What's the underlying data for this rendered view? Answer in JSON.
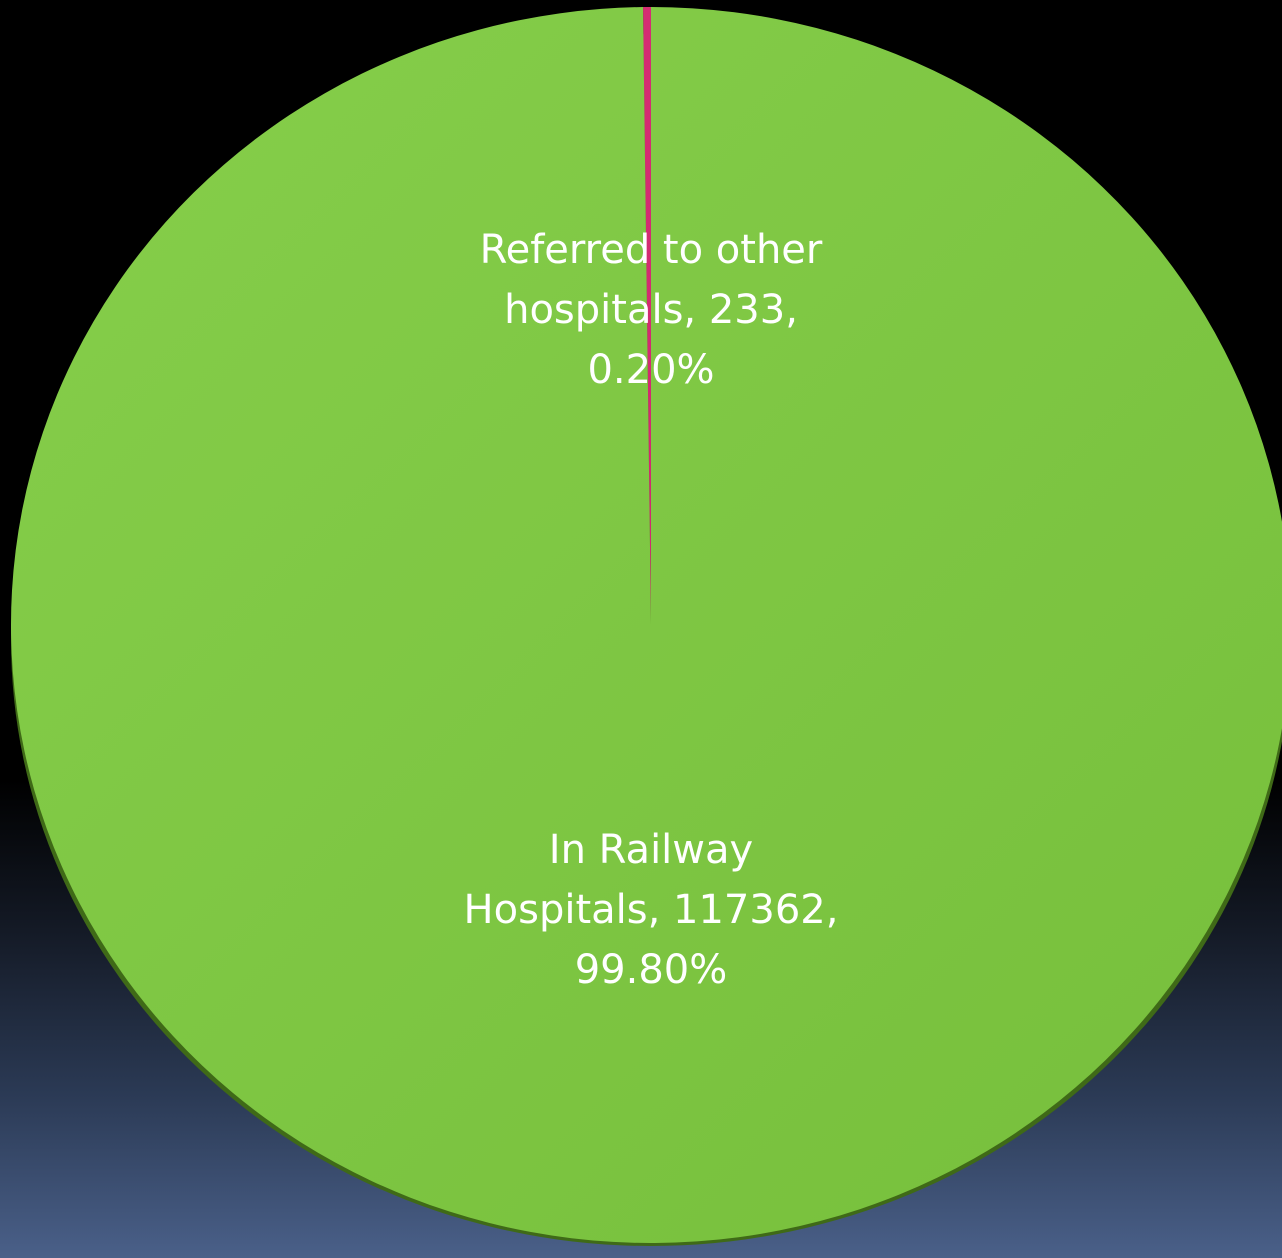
{
  "chart_data": {
    "type": "pie",
    "title": "",
    "slices": [
      {
        "label": "Referred to other hospitals",
        "value": 233,
        "percent": "0.20%",
        "color": "#d6246e",
        "data_label": "Referred to other\nhospitals, 233,\n0.20%"
      },
      {
        "label": "In Railway Hospitals",
        "value": 117362,
        "percent": "99.80%",
        "color": "#7ecb3f",
        "data_label": "In Railway\nHospitals, 117362,\n99.80%"
      }
    ],
    "legend": "none",
    "style": "3d-tilted"
  }
}
